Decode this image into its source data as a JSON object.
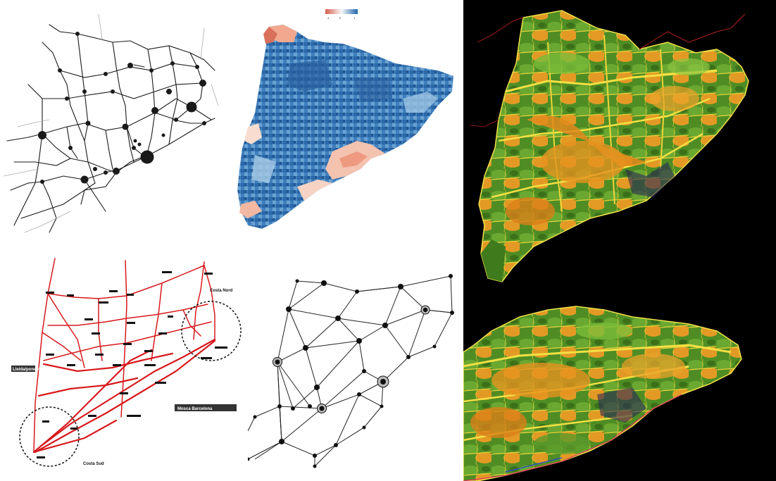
{
  "colors": {
    "network_line": "#1a1a1a",
    "red_network": "#d7191c",
    "choro_blue_dark": "#2166ac",
    "choro_blue_light": "#92c5de",
    "choro_red": "#ef8a62",
    "terrain_green": "#4a8a1f",
    "terrain_orange": "#e8901a",
    "terrain_yellow": "#e8d83a",
    "terrain_background": "#000000"
  },
  "legend": {
    "min": "-1",
    "mid": "0",
    "max": "1"
  },
  "red_map": {
    "areas": {
      "ponent": "Lleida/ponent",
      "north_east": "Costa Nord",
      "south": "Costa Sud",
      "metro": "Mosca Barcelona"
    }
  },
  "terrain": {
    "views": [
      "upper",
      "lower"
    ]
  }
}
